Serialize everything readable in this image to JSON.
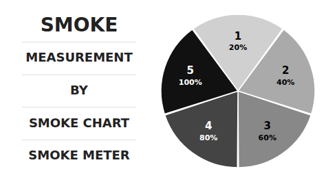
{
  "chart_data": {
    "type": "pie",
    "title": [
      "SMOKE",
      "MEASUREMENT",
      "BY",
      "SMOKE CHART",
      "SMOKE METER"
    ],
    "categories": [
      "1",
      "2",
      "3",
      "4",
      "5"
    ],
    "values": [
      1,
      1,
      1,
      1,
      1
    ],
    "annotations": [
      "20%",
      "40%",
      "60%",
      "80%",
      "100%"
    ],
    "colors": [
      "#D0D0D0",
      "#AAAAAA",
      "#888888",
      "#444444",
      "#111111"
    ]
  }
}
